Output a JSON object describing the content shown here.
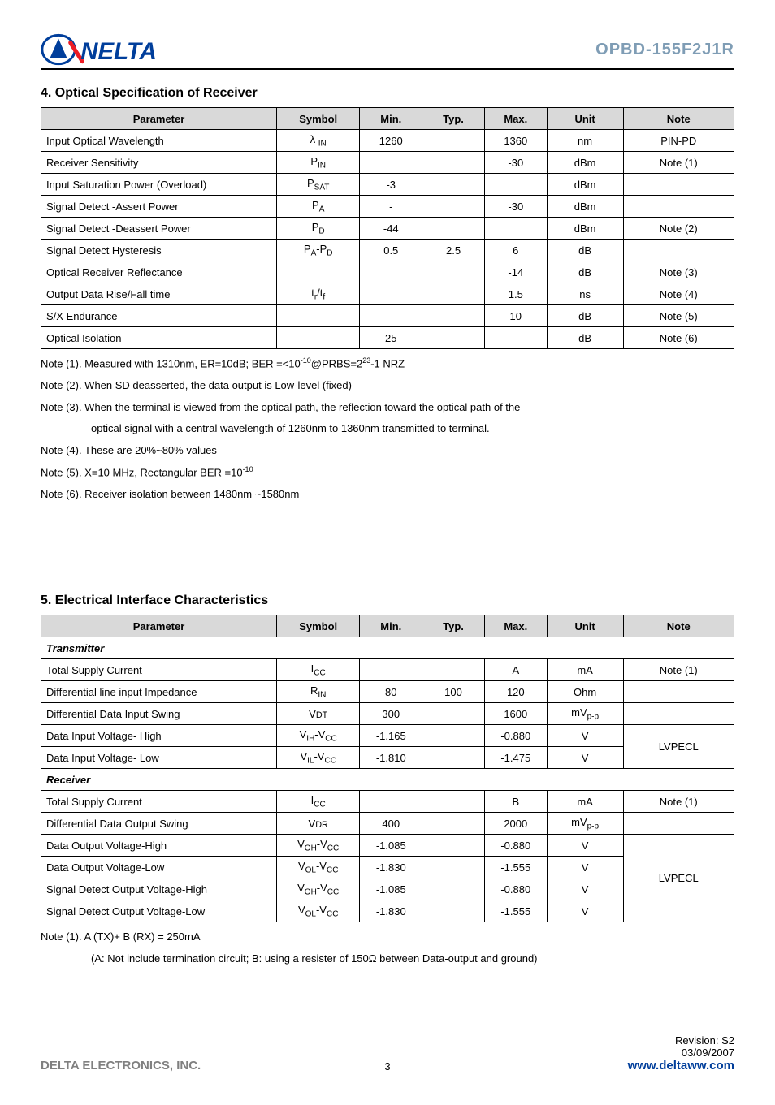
{
  "header": {
    "part_number": "OPBD-155F2J1R"
  },
  "section4": {
    "title": "4. Optical Specification of Receiver",
    "columns": [
      "Parameter",
      "Symbol",
      "Min.",
      "Typ.",
      "Max.",
      "Unit",
      "Note"
    ],
    "col_widths": [
      "34%",
      "12%",
      "9%",
      "9%",
      "9%",
      "11%",
      "16%"
    ],
    "header_bg": "#d9d9d9",
    "rows": [
      {
        "param": "Input Optical Wavelength",
        "symbol": "λ <sub>IN</sub>",
        "min": "1260",
        "typ": "",
        "max": "1360",
        "unit": "nm",
        "note": "PIN-PD"
      },
      {
        "param": "Receiver Sensitivity",
        "symbol": "P<sub>IN</sub>",
        "min": "",
        "typ": "",
        "max": "-30",
        "unit": "dBm",
        "note": "Note (1)"
      },
      {
        "param": "Input Saturation Power (Overload)",
        "symbol": "P<sub>SAT</sub>",
        "min": "-3",
        "typ": "",
        "max": "",
        "unit": "dBm",
        "note": ""
      },
      {
        "param": "Signal Detect -Assert Power",
        "symbol": "P<sub>A</sub>",
        "min": "-",
        "typ": "",
        "max": "-30",
        "unit": "dBm",
        "note": ""
      },
      {
        "param": "Signal Detect -Deassert Power",
        "symbol": "P<sub>D</sub>",
        "min": "-44",
        "typ": "",
        "max": "",
        "unit": "dBm",
        "note": "Note (2)"
      },
      {
        "param": "Signal Detect Hysteresis",
        "symbol": "P<sub>A</sub>-P<sub>D</sub>",
        "min": "0.5",
        "typ": "2.5",
        "max": "6",
        "unit": "dB",
        "note": ""
      },
      {
        "param": "Optical Receiver Reflectance",
        "symbol": "",
        "min": "",
        "typ": "",
        "max": "-14",
        "unit": "dB",
        "note": "Note (3)"
      },
      {
        "param": "Output Data Rise/Fall time",
        "symbol": "t<sub>r</sub>/t<sub>f</sub>",
        "min": "",
        "typ": "",
        "max": "1.5",
        "unit": "ns",
        "note": "Note (4)"
      },
      {
        "param": "S/X Endurance",
        "symbol": "",
        "min": "",
        "typ": "",
        "max": "10",
        "unit": "dB",
        "note": "Note (5)"
      },
      {
        "param": "Optical Isolation",
        "symbol": "",
        "min": "25",
        "typ": "",
        "max": "",
        "unit": "dB",
        "note": "Note (6)"
      }
    ],
    "notes": [
      "Note (1). Measured with 1310nm, ER=10dB; BER =<10<sup>-10</sup>@PRBS=2<sup>23</sup>-1 NRZ",
      "Note (2). When SD deasserted, the data output is Low-level (fixed)",
      "Note (3). When the terminal is viewed from the optical path, the reflection toward the optical path of the",
      "__INDENT__optical signal with a central wavelength of 1260nm to 1360nm transmitted to terminal.",
      "Note (4). These are 20%~80% values",
      "Note (5). X=10 MHz, Rectangular BER =10<sup>-10</sup>",
      "Note (6). Receiver isolation between 1480nm ~1580nm"
    ]
  },
  "section5": {
    "title": "5. Electrical Interface Characteristics",
    "columns": [
      "Parameter",
      "Symbol",
      "Min.",
      "Typ.",
      "Max.",
      "Unit",
      "Note"
    ],
    "col_widths": [
      "34%",
      "12%",
      "9%",
      "9%",
      "9%",
      "11%",
      "16%"
    ],
    "header_bg": "#d9d9d9",
    "transmitter_label": "Transmitter",
    "transmitter_rows": [
      {
        "param": "Total Supply Current",
        "symbol": "I<sub>CC</sub>",
        "min": "",
        "typ": "",
        "max": "A",
        "unit": "mA",
        "note": "Note (1)"
      },
      {
        "param": "Differential line input Impedance",
        "symbol": "R<sub>IN</sub>",
        "min": "80",
        "typ": "100",
        "max": "120",
        "unit": "Ohm",
        "note": ""
      },
      {
        "param": "Differential Data Input Swing",
        "symbol": "V<small>DT</small>",
        "min": "300",
        "typ": "",
        "max": "1600",
        "unit": "mV<sub>p-p</sub>",
        "note": ""
      },
      {
        "param": "Data Input Voltage- High",
        "symbol": "V<sub>IH</sub>-V<sub>CC</sub>",
        "min": "-1.165",
        "typ": "",
        "max": "-0.880",
        "unit": "V",
        "note": "__LVPECL_TOP__"
      },
      {
        "param": "Data Input Voltage- Low",
        "symbol": "V<sub>IL</sub>-V<sub>CC</sub>",
        "min": "-1.810",
        "typ": "",
        "max": "-1.475",
        "unit": "V",
        "note": "__LVPECL_SKIP__"
      }
    ],
    "receiver_label": "Receiver",
    "receiver_rows": [
      {
        "param": "Total Supply Current",
        "symbol": "I<sub>CC</sub>",
        "min": "",
        "typ": "",
        "max": "B",
        "unit": "mA",
        "note": "Note (1)"
      },
      {
        "param": "Differential Data Output Swing",
        "symbol": "V<small>DR</small>",
        "min": "400",
        "typ": "",
        "max": "2000",
        "unit": "mV<sub>p-p</sub>",
        "note": ""
      },
      {
        "param": "Data Output Voltage-High",
        "symbol": "V<sub>OH</sub>-V<sub>CC</sub>",
        "min": "-1.085",
        "typ": "",
        "max": "-0.880",
        "unit": "V",
        "note": "__LVPECL4_TOP__"
      },
      {
        "param": "Data Output Voltage-Low",
        "symbol": "V<sub>OL</sub>-V<sub>CC</sub>",
        "min": "-1.830",
        "typ": "",
        "max": "-1.555",
        "unit": "V",
        "note": "__LVPECL4_SKIP__"
      },
      {
        "param": "Signal Detect Output Voltage-High",
        "symbol": "V<sub>OH</sub>-V<sub>CC</sub>",
        "min": "-1.085",
        "typ": "",
        "max": "-0.880",
        "unit": "V",
        "note": "__LVPECL4_SKIP__"
      },
      {
        "param": "Signal Detect Output Voltage-Low",
        "symbol": "V<sub>OL</sub>-V<sub>CC</sub>",
        "min": "-1.830",
        "typ": "",
        "max": "-1.555",
        "unit": "V",
        "note": "__LVPECL4_SKIP__"
      }
    ],
    "lvpecl_label": "LVPECL",
    "notes": [
      "Note (1). A (TX)+ B (RX) = 250mA",
      "__INDENT__(A: Not include termination circuit; B: using a resister of 150Ω between Data-output and ground)"
    ]
  },
  "footer": {
    "page": "3",
    "revision": "Revision:  S2",
    "date": "03/09/2007",
    "company": "DELTA ELECTRONICS, INC.",
    "url": "www.deltaww.com"
  }
}
